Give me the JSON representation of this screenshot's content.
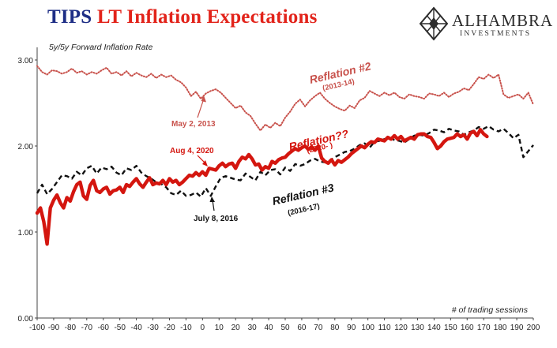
{
  "header": {
    "title_part1": "TIPS",
    "title_part2": "LT Inflation Expectations",
    "logo_name": "ALHAMBRA",
    "logo_sub": "INVESTMENTS",
    "logo_icon": "diamond-lattice-icon",
    "colors": {
      "title_navy": "#1f2f86",
      "title_red": "#e2231a"
    }
  },
  "chart_data": {
    "type": "line",
    "subtitle": "5y/5y Forward Inflation Rate",
    "xlabel": "# of trading sessions",
    "ylabel": "",
    "xlim": [
      -100,
      200
    ],
    "ylim": [
      0,
      3
    ],
    "x_ticks": [
      -100,
      -90,
      -80,
      -70,
      -60,
      -50,
      -40,
      -30,
      -20,
      -10,
      0,
      10,
      20,
      30,
      40,
      50,
      60,
      70,
      80,
      90,
      100,
      110,
      120,
      130,
      140,
      150,
      160,
      170,
      180,
      190,
      200
    ],
    "y_ticks": [
      0,
      1,
      2,
      3
    ],
    "y_tick_labels": [
      "0.00",
      "1.00",
      "2.00",
      "3.00"
    ],
    "grid": false,
    "legend": "none",
    "series": [
      {
        "name": "Reflation #2",
        "style": "dotted",
        "color": "#c8524c",
        "x": [
          -100,
          -97,
          -94,
          -91,
          -88,
          -85,
          -82,
          -79,
          -76,
          -73,
          -70,
          -67,
          -64,
          -61,
          -58,
          -55,
          -52,
          -49,
          -46,
          -43,
          -40,
          -37,
          -34,
          -31,
          -28,
          -25,
          -22,
          -19,
          -16,
          -13,
          -10,
          -7,
          -4,
          -1,
          2,
          5,
          8,
          11,
          14,
          17,
          20,
          23,
          26,
          29,
          32,
          35,
          38,
          41,
          44,
          47,
          50,
          53,
          56,
          59,
          62,
          65,
          68,
          71,
          74,
          77,
          80,
          83,
          86,
          89,
          92,
          95,
          98,
          101,
          104,
          107,
          110,
          113,
          116,
          119,
          122,
          125,
          128,
          131,
          134,
          137,
          140,
          143,
          146,
          149,
          152,
          155,
          158,
          161,
          164,
          167,
          170,
          173,
          176,
          179,
          182,
          185,
          188,
          191,
          194,
          197,
          200
        ],
        "y": [
          2.93,
          2.86,
          2.83,
          2.88,
          2.87,
          2.84,
          2.86,
          2.9,
          2.85,
          2.87,
          2.83,
          2.86,
          2.84,
          2.88,
          2.91,
          2.84,
          2.86,
          2.82,
          2.87,
          2.81,
          2.85,
          2.82,
          2.8,
          2.84,
          2.79,
          2.83,
          2.8,
          2.82,
          2.77,
          2.74,
          2.68,
          2.58,
          2.63,
          2.55,
          2.61,
          2.64,
          2.66,
          2.62,
          2.56,
          2.5,
          2.44,
          2.47,
          2.39,
          2.35,
          2.26,
          2.18,
          2.25,
          2.21,
          2.27,
          2.23,
          2.33,
          2.4,
          2.49,
          2.54,
          2.46,
          2.53,
          2.58,
          2.62,
          2.55,
          2.5,
          2.46,
          2.43,
          2.41,
          2.47,
          2.44,
          2.53,
          2.56,
          2.64,
          2.61,
          2.58,
          2.62,
          2.59,
          2.62,
          2.57,
          2.55,
          2.6,
          2.58,
          2.57,
          2.55,
          2.61,
          2.6,
          2.58,
          2.62,
          2.57,
          2.61,
          2.63,
          2.67,
          2.65,
          2.72,
          2.8,
          2.78,
          2.83,
          2.79,
          2.83,
          2.6,
          2.56,
          2.58,
          2.6,
          2.55,
          2.62,
          2.48
        ]
      },
      {
        "name": "Reflation #3",
        "style": "dashed",
        "color": "#111111",
        "x": [
          -100,
          -97,
          -94,
          -91,
          -88,
          -85,
          -82,
          -79,
          -76,
          -73,
          -70,
          -67,
          -64,
          -61,
          -58,
          -55,
          -52,
          -49,
          -46,
          -43,
          -40,
          -37,
          -34,
          -31,
          -28,
          -25,
          -22,
          -19,
          -16,
          -13,
          -10,
          -7,
          -4,
          -1,
          2,
          5,
          8,
          11,
          14,
          17,
          20,
          23,
          26,
          29,
          32,
          35,
          38,
          41,
          44,
          47,
          50,
          53,
          56,
          59,
          62,
          65,
          68,
          71,
          74,
          77,
          80,
          83,
          86,
          89,
          92,
          95,
          98,
          101,
          104,
          107,
          110,
          113,
          116,
          119,
          122,
          125,
          128,
          131,
          134,
          137,
          140,
          143,
          146,
          149,
          152,
          155,
          158,
          161,
          164,
          167,
          170,
          173,
          176,
          179,
          182,
          185,
          188,
          191,
          194,
          197,
          200
        ],
        "y": [
          1.45,
          1.55,
          1.44,
          1.5,
          1.58,
          1.66,
          1.65,
          1.62,
          1.7,
          1.66,
          1.74,
          1.77,
          1.68,
          1.75,
          1.73,
          1.76,
          1.69,
          1.66,
          1.74,
          1.72,
          1.77,
          1.69,
          1.65,
          1.62,
          1.58,
          1.56,
          1.52,
          1.45,
          1.43,
          1.48,
          1.42,
          1.43,
          1.46,
          1.41,
          1.51,
          1.42,
          1.53,
          1.63,
          1.65,
          1.63,
          1.61,
          1.6,
          1.68,
          1.64,
          1.6,
          1.7,
          1.66,
          1.72,
          1.73,
          1.67,
          1.75,
          1.71,
          1.79,
          1.77,
          1.79,
          1.83,
          1.85,
          1.82,
          1.81,
          1.83,
          1.87,
          1.9,
          1.93,
          1.94,
          1.97,
          2.01,
          2.03,
          1.98,
          2.05,
          2.06,
          2.08,
          2.1,
          2.07,
          2.06,
          2.04,
          2.08,
          2.12,
          2.13,
          2.12,
          2.15,
          2.19,
          2.18,
          2.16,
          2.2,
          2.18,
          2.17,
          2.13,
          2.16,
          2.18,
          2.22,
          2.2,
          2.23,
          2.19,
          2.17,
          2.2,
          2.15,
          2.09,
          2.13,
          1.87,
          1.94,
          2.01
        ]
      },
      {
        "name": "Reflation??",
        "style": "solid",
        "color": "#d4160f",
        "x": [
          -100,
          -98,
          -96,
          -94,
          -92,
          -90,
          -88,
          -86,
          -84,
          -82,
          -80,
          -78,
          -76,
          -74,
          -72,
          -70,
          -68,
          -66,
          -64,
          -62,
          -60,
          -58,
          -56,
          -54,
          -52,
          -50,
          -48,
          -46,
          -44,
          -42,
          -40,
          -38,
          -36,
          -34,
          -32,
          -30,
          -28,
          -26,
          -24,
          -22,
          -20,
          -18,
          -16,
          -14,
          -12,
          -10,
          -8,
          -6,
          -4,
          -2,
          0,
          2,
          4,
          6,
          8,
          10,
          12,
          14,
          16,
          18,
          20,
          22,
          24,
          26,
          28,
          30,
          32,
          34,
          36,
          38,
          40,
          42,
          44,
          46,
          48,
          50,
          52,
          54,
          56,
          58,
          60,
          62,
          64,
          66,
          68,
          70,
          72,
          74,
          76,
          78,
          80,
          82,
          84,
          86,
          88,
          90,
          92,
          94,
          96,
          98,
          100,
          102,
          104,
          106,
          108,
          110,
          112,
          114,
          116,
          118,
          120,
          122,
          124,
          126,
          128,
          130,
          132,
          134,
          136,
          138,
          140,
          142,
          144,
          146,
          148,
          150,
          152,
          154,
          156,
          158,
          160,
          162,
          164,
          166,
          168,
          170,
          172
        ],
        "y": [
          1.22,
          1.28,
          1.12,
          0.86,
          1.28,
          1.37,
          1.43,
          1.34,
          1.28,
          1.4,
          1.36,
          1.47,
          1.55,
          1.58,
          1.42,
          1.38,
          1.54,
          1.6,
          1.48,
          1.46,
          1.5,
          1.52,
          1.44,
          1.48,
          1.49,
          1.52,
          1.46,
          1.55,
          1.53,
          1.58,
          1.62,
          1.56,
          1.52,
          1.58,
          1.63,
          1.55,
          1.57,
          1.56,
          1.6,
          1.55,
          1.62,
          1.58,
          1.6,
          1.55,
          1.58,
          1.62,
          1.66,
          1.65,
          1.69,
          1.66,
          1.7,
          1.66,
          1.74,
          1.73,
          1.72,
          1.77,
          1.8,
          1.76,
          1.79,
          1.8,
          1.74,
          1.82,
          1.87,
          1.85,
          1.9,
          1.85,
          1.78,
          1.79,
          1.72,
          1.76,
          1.74,
          1.82,
          1.8,
          1.84,
          1.86,
          1.87,
          1.91,
          1.94,
          1.97,
          1.95,
          1.98,
          2.0,
          1.96,
          1.99,
          1.95,
          2.0,
          1.86,
          1.82,
          1.8,
          1.84,
          1.78,
          1.83,
          1.81,
          1.84,
          1.87,
          1.91,
          1.94,
          1.97,
          2.0,
          1.98,
          2.02,
          2.05,
          2.04,
          2.08,
          2.07,
          2.06,
          2.1,
          2.08,
          2.12,
          2.08,
          2.11,
          2.06,
          2.08,
          2.1,
          2.08,
          2.13,
          2.14,
          2.14,
          2.11,
          2.1,
          2.04,
          1.97,
          2.0,
          2.05,
          2.08,
          2.09,
          2.1,
          2.14,
          2.11,
          2.13,
          2.08,
          2.15,
          2.17,
          2.12,
          2.19,
          2.14,
          2.11
        ]
      }
    ],
    "annotations": [
      {
        "text": "Reflation #2",
        "subtext": "(2013-14)",
        "color": "#c8524c",
        "style": "bold-italic"
      },
      {
        "text": "May 2, 2013",
        "color": "#c8524c",
        "style": "bold",
        "arrow_to": [
          -2,
          2.6
        ]
      },
      {
        "text": "Reflation??",
        "subtext": "(2020- )",
        "color": "#d4160f",
        "style": "bold-italic"
      },
      {
        "text": "Aug 4, 2020",
        "color": "#d4160f",
        "style": "bold",
        "arrow_to": [
          0,
          1.72
        ]
      },
      {
        "text": "Reflation #3",
        "subtext": "(2016-17)",
        "color": "#111111",
        "style": "bold-italic"
      },
      {
        "text": "July 8, 2016",
        "color": "#111111",
        "style": "bold",
        "arrow_to": [
          4,
          1.45
        ]
      }
    ]
  }
}
